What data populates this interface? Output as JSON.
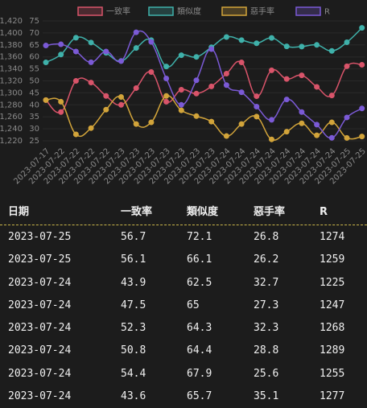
{
  "chart_data": {
    "type": "line",
    "categories": [
      "2023-07-17",
      "2023-07-22",
      "2023-07-22",
      "2023-07-22",
      "2023-07-22",
      "2023-07-23",
      "2023-07-23",
      "2023-07-23",
      "2023-07-23",
      "2023-07-23",
      "2023-07-23",
      "2023-07-23",
      "2023-07-24",
      "2023-07-24",
      "2023-07-24",
      "2023-07-24",
      "2023-07-24",
      "2023-07-24",
      "2023-07-24",
      "2023-07-24",
      "2023-07-25",
      "2023-07-25"
    ],
    "series": [
      {
        "name": "一致率",
        "color": "#d9546a",
        "values": [
          42.0,
          37.0,
          50.0,
          49.3,
          43.7,
          40.0,
          47.0,
          53.7,
          41.3,
          46.3,
          44.7,
          47.7,
          53.0,
          57.7,
          43.6,
          54.4,
          50.8,
          52.3,
          47.5,
          43.9,
          56.1,
          56.7
        ]
      },
      {
        "name": "類似度",
        "color": "#3fb1aa",
        "values": [
          57.7,
          61.0,
          68.0,
          66.0,
          61.7,
          58.3,
          63.7,
          67.0,
          56.0,
          60.7,
          60.0,
          64.0,
          68.3,
          67.0,
          65.7,
          67.9,
          64.4,
          64.3,
          65,
          62.5,
          66.1,
          72.1
        ]
      },
      {
        "name": "惡手率",
        "color": "#d2a43a",
        "values": [
          42.0,
          41.3,
          27.7,
          30.3,
          38.0,
          43.3,
          32.0,
          32.7,
          43.7,
          37.7,
          35.3,
          33.0,
          27.0,
          32.0,
          35.1,
          25.6,
          28.8,
          32.3,
          27.3,
          32.7,
          26.2,
          26.8
        ]
      },
      {
        "name": "R",
        "color": "#7b5ad6",
        "axis": "y2",
        "values": [
          1379,
          1381,
          1369,
          1351,
          1369,
          1353,
          1401,
          1385,
          1324,
          1280,
          1321,
          1373,
          1313,
          1301,
          1277,
          1255,
          1289,
          1268,
          1247,
          1225,
          1259,
          1274
        ]
      }
    ],
    "ylim": [
      25,
      75
    ],
    "yticks": [
      25,
      30,
      35,
      40,
      45,
      50,
      55,
      60,
      65,
      70,
      75
    ],
    "y2lim": [
      1220,
      1420
    ],
    "y2ticks": [
      {
        "value": 1220,
        "label": "1,220"
      },
      {
        "value": 1240,
        "label": "1,240"
      },
      {
        "value": 1260,
        "label": "1,260"
      },
      {
        "value": 1280,
        "label": "1,280"
      },
      {
        "value": 1300,
        "label": "1,300"
      },
      {
        "value": 1320,
        "label": "1,320"
      },
      {
        "value": 1340,
        "label": "1,340"
      },
      {
        "value": 1360,
        "label": "1,360"
      },
      {
        "value": 1380,
        "label": "1,380"
      },
      {
        "value": 1400,
        "label": "1,400"
      },
      {
        "value": 1420,
        "label": "1,420"
      }
    ],
    "grid": true,
    "legend": "top"
  },
  "table": {
    "columns": [
      "日期",
      "一致率",
      "類似度",
      "惡手率",
      "R"
    ],
    "rows": [
      [
        "2023-07-25",
        56.7,
        72.1,
        26.8,
        1274
      ],
      [
        "2023-07-25",
        56.1,
        66.1,
        26.2,
        1259
      ],
      [
        "2023-07-24",
        43.9,
        62.5,
        32.7,
        1225
      ],
      [
        "2023-07-24",
        47.5,
        65,
        27.3,
        1247
      ],
      [
        "2023-07-24",
        52.3,
        64.3,
        32.3,
        1268
      ],
      [
        "2023-07-24",
        50.8,
        64.4,
        28.8,
        1289
      ],
      [
        "2023-07-24",
        54.4,
        67.9,
        25.6,
        1255
      ],
      [
        "2023-07-24",
        43.6,
        65.7,
        35.1,
        1277
      ]
    ]
  }
}
